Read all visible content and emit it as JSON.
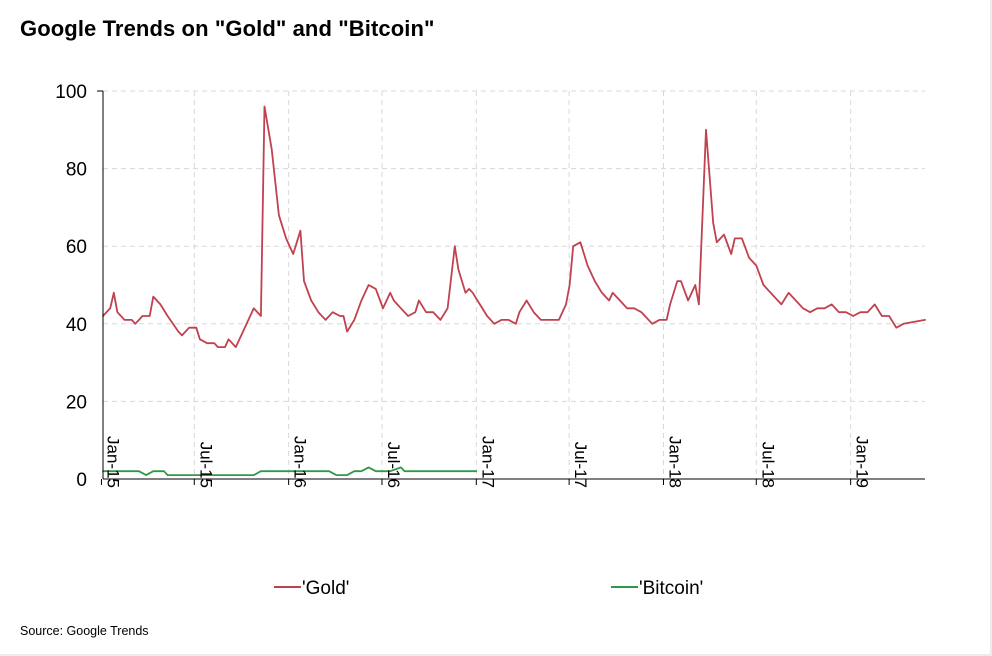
{
  "title": "Google Trends on \"Gold\" and \"Bitcoin\"",
  "source": "Source: Google Trends",
  "colors": {
    "gold": "#c0414f",
    "bitcoin": "#2e9a47",
    "grid": "#d8d8d8",
    "axis": "#000000"
  },
  "chart_data": {
    "type": "line",
    "title": "Google Trends on \"Gold\" and \"Bitcoin\"",
    "xlabel": "",
    "ylabel": "",
    "ylim": [
      0,
      100
    ],
    "yticks": [
      0,
      20,
      40,
      60,
      80,
      100
    ],
    "x_start": "2015-01-04",
    "x_end": "2019-05-26",
    "xtick_labels": [
      "Jan-15",
      "Jul-15",
      "Jan-16",
      "Jul-16",
      "Jan-17",
      "Jul-17",
      "Jan-18",
      "Jul-18",
      "Jan-19"
    ],
    "xtick_dates": [
      "2015-01-01",
      "2015-07-01",
      "2016-01-01",
      "2016-07-01",
      "2017-01-01",
      "2017-07-01",
      "2018-01-01",
      "2018-07-01",
      "2019-01-01"
    ],
    "grid": true,
    "legend_position": "bottom",
    "series": [
      {
        "name": "'Gold'",
        "color": "#c0414f",
        "points": [
          [
            "2015-01-04",
            42
          ],
          [
            "2015-01-18",
            44
          ],
          [
            "2015-01-25",
            48
          ],
          [
            "2015-02-01",
            43
          ],
          [
            "2015-02-15",
            41
          ],
          [
            "2015-03-01",
            41
          ],
          [
            "2015-03-08",
            40
          ],
          [
            "2015-03-22",
            42
          ],
          [
            "2015-04-05",
            42
          ],
          [
            "2015-04-12",
            47
          ],
          [
            "2015-04-26",
            45
          ],
          [
            "2015-05-10",
            42
          ],
          [
            "2015-05-31",
            38
          ],
          [
            "2015-06-07",
            37
          ],
          [
            "2015-06-21",
            39
          ],
          [
            "2015-07-05",
            39
          ],
          [
            "2015-07-12",
            36
          ],
          [
            "2015-07-26",
            35
          ],
          [
            "2015-08-09",
            35
          ],
          [
            "2015-08-16",
            34
          ],
          [
            "2015-08-30",
            34
          ],
          [
            "2015-09-06",
            36
          ],
          [
            "2015-09-20",
            34
          ],
          [
            "2015-10-04",
            38
          ],
          [
            "2015-10-18",
            42
          ],
          [
            "2015-10-25",
            44
          ],
          [
            "2015-11-08",
            42
          ],
          [
            "2015-11-15",
            96
          ],
          [
            "2015-11-29",
            85
          ],
          [
            "2015-12-13",
            68
          ],
          [
            "2015-12-27",
            62
          ],
          [
            "2016-01-10",
            58
          ],
          [
            "2016-01-24",
            64
          ],
          [
            "2016-01-31",
            51
          ],
          [
            "2016-02-14",
            46
          ],
          [
            "2016-02-28",
            43
          ],
          [
            "2016-03-13",
            41
          ],
          [
            "2016-03-27",
            43
          ],
          [
            "2016-04-10",
            42
          ],
          [
            "2016-04-17",
            42
          ],
          [
            "2016-04-24",
            38
          ],
          [
            "2016-05-08",
            41
          ],
          [
            "2016-05-22",
            46
          ],
          [
            "2016-06-05",
            50
          ],
          [
            "2016-06-19",
            49
          ],
          [
            "2016-07-03",
            44
          ],
          [
            "2016-07-17",
            48
          ],
          [
            "2016-07-24",
            46
          ],
          [
            "2016-08-07",
            44
          ],
          [
            "2016-08-21",
            42
          ],
          [
            "2016-09-04",
            43
          ],
          [
            "2016-09-11",
            46
          ],
          [
            "2016-09-25",
            43
          ],
          [
            "2016-10-09",
            43
          ],
          [
            "2016-10-23",
            41
          ],
          [
            "2016-11-06",
            44
          ],
          [
            "2016-11-20",
            60
          ],
          [
            "2016-11-27",
            54
          ],
          [
            "2016-12-11",
            48
          ],
          [
            "2016-12-18",
            49
          ],
          [
            "2016-12-25",
            48
          ],
          [
            "2017-01-08",
            45
          ],
          [
            "2017-01-22",
            42
          ],
          [
            "2017-02-05",
            40
          ],
          [
            "2017-02-19",
            41
          ],
          [
            "2017-03-05",
            41
          ],
          [
            "2017-03-19",
            40
          ],
          [
            "2017-03-26",
            43
          ],
          [
            "2017-04-09",
            46
          ],
          [
            "2017-04-23",
            43
          ],
          [
            "2017-05-07",
            41
          ],
          [
            "2017-05-21",
            41
          ],
          [
            "2017-06-04",
            41
          ],
          [
            "2017-06-11",
            41
          ],
          [
            "2017-06-25",
            45
          ],
          [
            "2017-07-02",
            50
          ],
          [
            "2017-07-09",
            60
          ],
          [
            "2017-07-23",
            61
          ],
          [
            "2017-08-06",
            55
          ],
          [
            "2017-08-20",
            51
          ],
          [
            "2017-09-03",
            48
          ],
          [
            "2017-09-17",
            46
          ],
          [
            "2017-09-24",
            48
          ],
          [
            "2017-10-08",
            46
          ],
          [
            "2017-10-22",
            44
          ],
          [
            "2017-11-05",
            44
          ],
          [
            "2017-11-19",
            43
          ],
          [
            "2017-11-26",
            42
          ],
          [
            "2017-12-10",
            40
          ],
          [
            "2017-12-24",
            41
          ],
          [
            "2018-01-07",
            41
          ],
          [
            "2018-01-14",
            45
          ],
          [
            "2018-01-28",
            51
          ],
          [
            "2018-02-04",
            51
          ],
          [
            "2018-02-18",
            46
          ],
          [
            "2018-03-04",
            50
          ],
          [
            "2018-03-11",
            45
          ],
          [
            "2018-03-25",
            90
          ],
          [
            "2018-04-08",
            66
          ],
          [
            "2018-04-15",
            61
          ],
          [
            "2018-04-29",
            63
          ],
          [
            "2018-05-13",
            58
          ],
          [
            "2018-05-20",
            62
          ],
          [
            "2018-06-03",
            62
          ],
          [
            "2018-06-17",
            57
          ],
          [
            "2018-07-01",
            55
          ],
          [
            "2018-07-15",
            50
          ],
          [
            "2018-07-29",
            48
          ],
          [
            "2018-08-05",
            47
          ],
          [
            "2018-08-19",
            45
          ],
          [
            "2018-09-02",
            48
          ],
          [
            "2018-09-16",
            46
          ],
          [
            "2018-09-30",
            44
          ],
          [
            "2018-10-14",
            43
          ],
          [
            "2018-10-28",
            44
          ],
          [
            "2018-11-11",
            44
          ],
          [
            "2018-11-25",
            45
          ],
          [
            "2018-12-09",
            43
          ],
          [
            "2018-12-23",
            43
          ],
          [
            "2019-01-06",
            42
          ],
          [
            "2019-01-20",
            43
          ],
          [
            "2019-02-03",
            43
          ],
          [
            "2019-02-17",
            45
          ],
          [
            "2019-03-03",
            42
          ],
          [
            "2019-03-17",
            42
          ],
          [
            "2019-03-31",
            39
          ],
          [
            "2019-04-14",
            40
          ],
          [
            "2019-05-26",
            41
          ]
        ]
      },
      {
        "name": "'Bitcoin'",
        "color": "#2e9a47",
        "points": [
          [
            "2015-01-04",
            2
          ],
          [
            "2015-03-01",
            2
          ],
          [
            "2015-03-15",
            2
          ],
          [
            "2015-03-29",
            1
          ],
          [
            "2015-04-12",
            2
          ],
          [
            "2015-05-03",
            2
          ],
          [
            "2015-05-10",
            1
          ],
          [
            "2015-06-07",
            1
          ],
          [
            "2015-07-05",
            1
          ],
          [
            "2015-08-02",
            1
          ],
          [
            "2015-09-06",
            1
          ],
          [
            "2015-10-04",
            1
          ],
          [
            "2015-10-25",
            1
          ],
          [
            "2015-11-08",
            2
          ],
          [
            "2015-12-06",
            2
          ],
          [
            "2016-01-03",
            2
          ],
          [
            "2016-02-07",
            2
          ],
          [
            "2016-03-06",
            2
          ],
          [
            "2016-03-20",
            2
          ],
          [
            "2016-04-03",
            1
          ],
          [
            "2016-04-24",
            1
          ],
          [
            "2016-05-08",
            2
          ],
          [
            "2016-05-22",
            2
          ],
          [
            "2016-06-05",
            3
          ],
          [
            "2016-06-19",
            2
          ],
          [
            "2016-07-03",
            2
          ],
          [
            "2016-07-17",
            2
          ],
          [
            "2016-08-07",
            3
          ],
          [
            "2016-08-14",
            2
          ],
          [
            "2016-09-04",
            2
          ],
          [
            "2016-10-02",
            2
          ],
          [
            "2016-11-06",
            2
          ],
          [
            "2016-12-04",
            2
          ],
          [
            "2017-01-01",
            2
          ]
        ]
      }
    ]
  },
  "legend": {
    "items": [
      {
        "label": "'Gold'",
        "color": "#c0414f"
      },
      {
        "label": "'Bitcoin'",
        "color": "#2e9a47"
      }
    ]
  }
}
